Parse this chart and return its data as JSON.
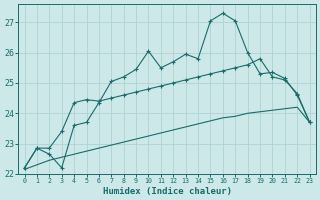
{
  "xlabel": "Humidex (Indice chaleur)",
  "bg_color": "#cce8e8",
  "grid_color": "#aacece",
  "line_color": "#1a6b6b",
  "xlim": [
    -0.5,
    23.5
  ],
  "ylim": [
    22.0,
    27.6
  ],
  "xticks": [
    0,
    1,
    2,
    3,
    4,
    5,
    6,
    7,
    8,
    9,
    10,
    11,
    12,
    13,
    14,
    15,
    16,
    17,
    18,
    19,
    20,
    21,
    22,
    23
  ],
  "yticks": [
    22,
    23,
    24,
    25,
    26,
    27
  ],
  "line1_x": [
    0,
    1,
    2,
    3,
    4,
    5,
    6,
    7,
    8,
    9,
    10,
    11,
    12,
    13,
    14,
    15,
    16,
    17,
    18,
    19,
    20,
    21,
    22,
    23
  ],
  "line1_y": [
    22.2,
    22.85,
    22.65,
    22.2,
    23.6,
    23.7,
    24.35,
    25.05,
    25.2,
    25.45,
    26.05,
    25.5,
    25.7,
    25.95,
    25.8,
    27.05,
    27.3,
    27.05,
    26.0,
    25.3,
    25.35,
    25.15,
    24.6,
    23.7
  ],
  "line2_x": [
    0,
    1,
    2,
    3,
    4,
    5,
    6,
    7,
    8,
    9,
    10,
    11,
    12,
    13,
    14,
    15,
    16,
    17,
    18,
    19,
    20,
    21,
    22,
    23
  ],
  "line2_y": [
    22.2,
    22.85,
    22.85,
    23.4,
    24.35,
    24.45,
    24.4,
    24.5,
    24.6,
    24.7,
    24.8,
    24.9,
    25.0,
    25.1,
    25.2,
    25.3,
    25.4,
    25.5,
    25.6,
    25.8,
    25.2,
    25.1,
    24.65,
    23.7
  ],
  "line3_x": [
    0,
    1,
    2,
    3,
    4,
    5,
    6,
    7,
    8,
    9,
    10,
    11,
    12,
    13,
    14,
    15,
    16,
    17,
    18,
    19,
    20,
    21,
    22,
    23
  ],
  "line3_y": [
    22.15,
    22.3,
    22.45,
    22.55,
    22.65,
    22.75,
    22.85,
    22.95,
    23.05,
    23.15,
    23.25,
    23.35,
    23.45,
    23.55,
    23.65,
    23.75,
    23.85,
    23.9,
    24.0,
    24.05,
    24.1,
    24.15,
    24.2,
    23.7
  ]
}
